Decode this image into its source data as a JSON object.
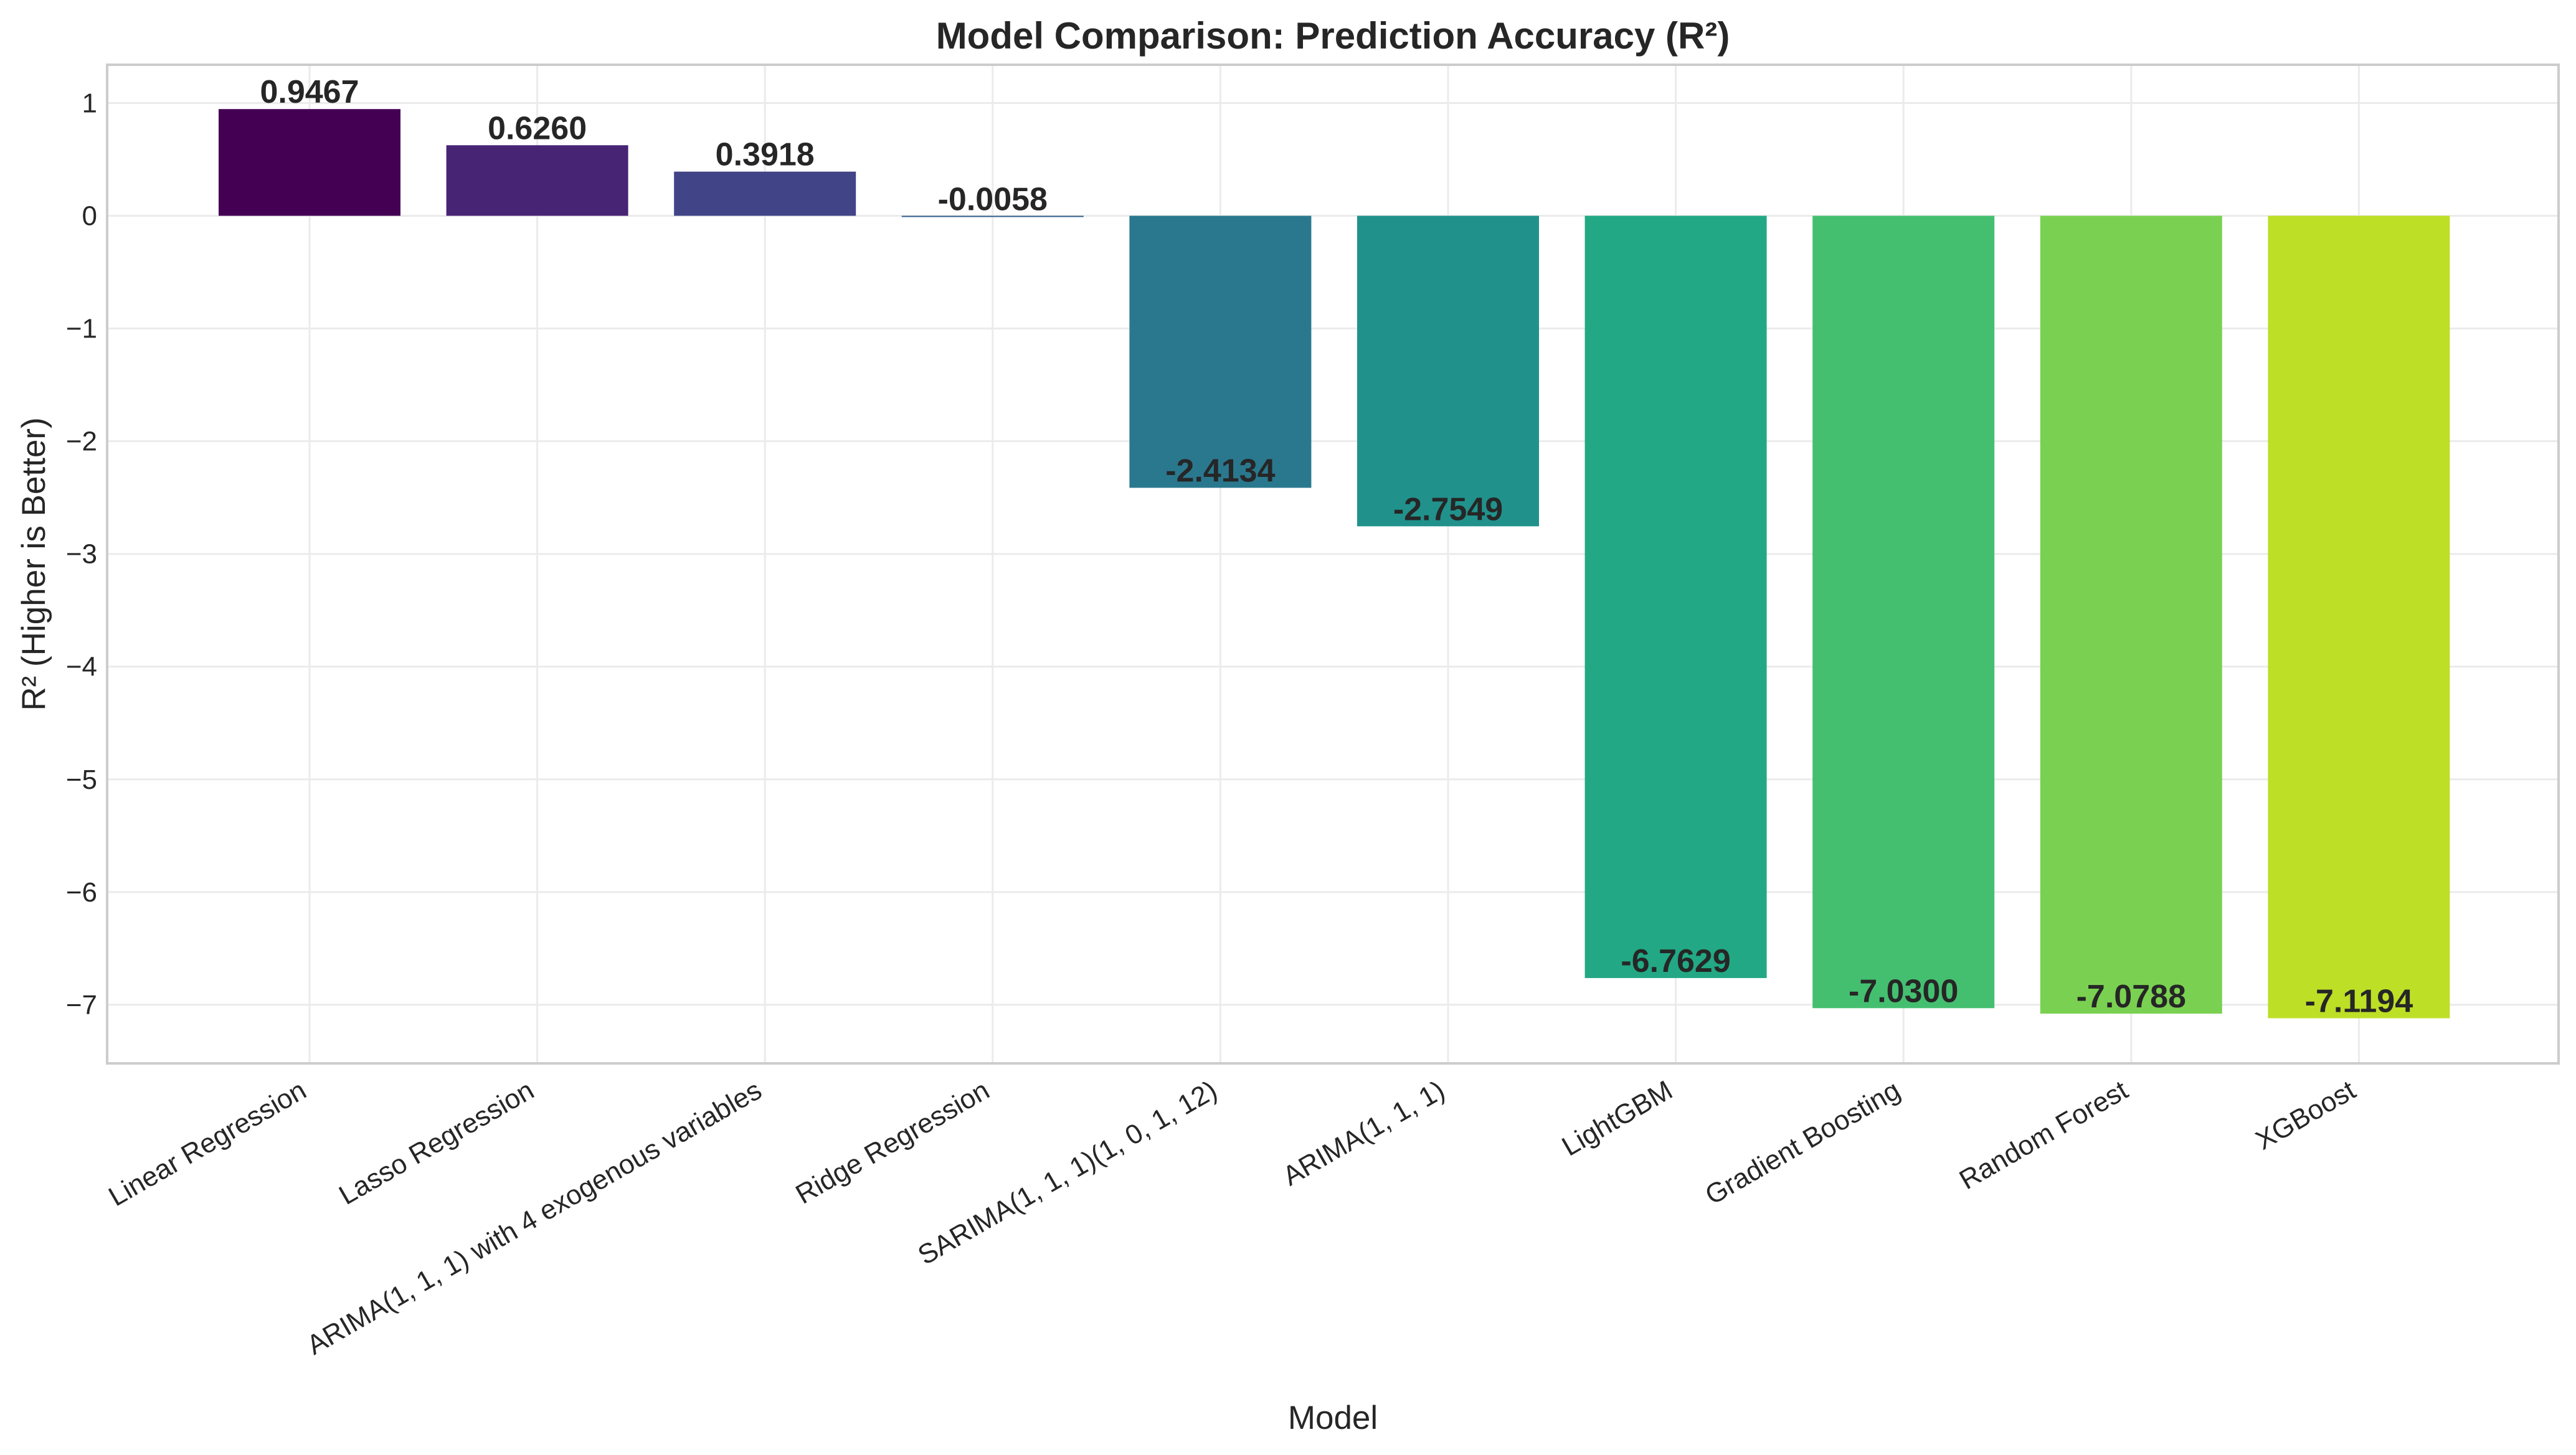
{
  "chart_data": {
    "type": "bar",
    "title": "Model Comparison: Prediction Accuracy (R²)",
    "xlabel": "Model",
    "ylabel": "R² (Higher is Better)",
    "categories": [
      "Linear Regression",
      "Lasso Regression",
      "ARIMA(1, 1, 1) with 4 exogenous variables",
      "Ridge Regression",
      "SARIMA(1, 1, 1)(1, 0, 1, 12)",
      "ARIMA(1, 1, 1)",
      "LightGBM",
      "Gradient Boosting",
      "Random Forest",
      "XGBoost"
    ],
    "values": [
      0.9467,
      0.626,
      0.3918,
      -0.0058,
      -2.4134,
      -2.7549,
      -6.7629,
      -7.03,
      -7.0788,
      -7.1194
    ],
    "value_labels": [
      "0.9467",
      "0.6260",
      "0.3918",
      "-0.0058",
      "-2.4134",
      "-2.7549",
      "-6.7629",
      "-7.0300",
      "-7.0788",
      "-7.1194"
    ],
    "colors": [
      "#440154",
      "#482475",
      "#414487",
      "#355f8d",
      "#2a788e",
      "#21918c",
      "#22a884",
      "#44bf70",
      "#7ad151",
      "#bddf26"
    ],
    "ylim": [
      -7.52,
      1.34
    ],
    "yticks": [
      1,
      0,
      -1,
      -2,
      -3,
      -4,
      -5,
      -6,
      -7
    ],
    "ytick_labels": [
      "1",
      "0",
      "−1",
      "−2",
      "−3",
      "−4",
      "−5",
      "−6",
      "−7"
    ],
    "grid": true,
    "legend": "none"
  }
}
